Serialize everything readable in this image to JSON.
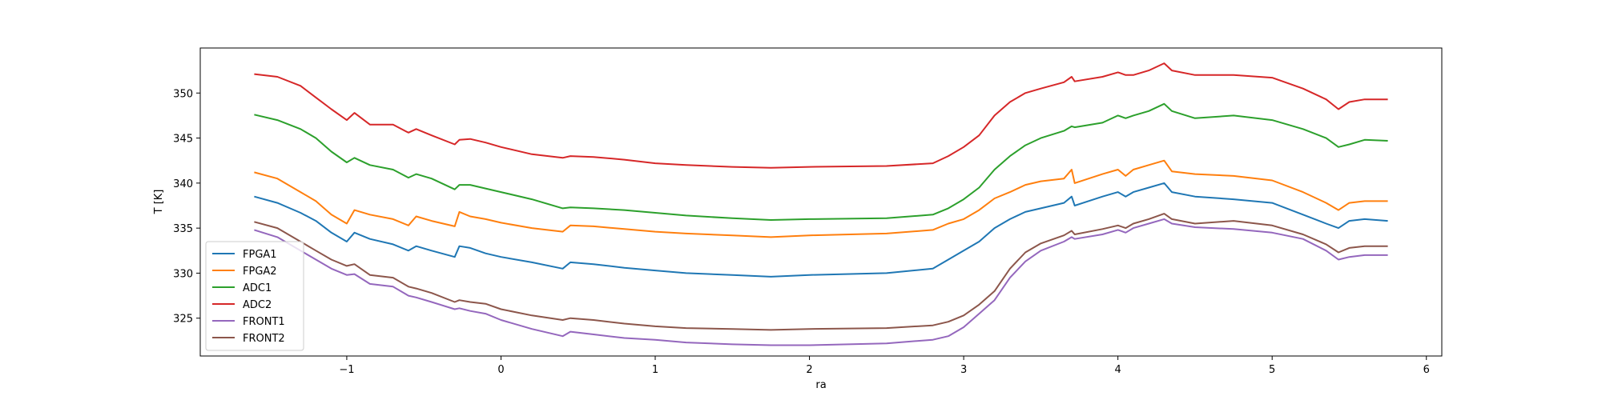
{
  "chart_data": {
    "type": "line",
    "title": "",
    "xlabel": "ra",
    "ylabel": "T [K]",
    "xlim": [
      -1.95,
      6.1
    ],
    "ylim": [
      320.8,
      355.0
    ],
    "xticks": [
      -1,
      0,
      1,
      2,
      3,
      4,
      5,
      6
    ],
    "xtick_labels": [
      "−1",
      "0",
      "1",
      "2",
      "3",
      "4",
      "5",
      "6"
    ],
    "yticks": [
      325,
      330,
      335,
      340,
      345,
      350
    ],
    "ytick_labels": [
      "325",
      "330",
      "335",
      "340",
      "345",
      "350"
    ],
    "grid": false,
    "legend_position": "lower-left",
    "series": [
      {
        "name": "FPGA1",
        "color": "#1f77b4",
        "x": [
          -1.6,
          -1.45,
          -1.3,
          -1.2,
          -1.1,
          -1.0,
          -0.95,
          -0.85,
          -0.7,
          -0.6,
          -0.55,
          -0.45,
          -0.3,
          -0.27,
          -0.2,
          -0.1,
          0.0,
          0.2,
          0.4,
          0.45,
          0.6,
          0.8,
          1.0,
          1.2,
          1.5,
          1.75,
          2.0,
          2.5,
          2.8,
          2.9,
          3.0,
          3.1,
          3.2,
          3.3,
          3.4,
          3.5,
          3.65,
          3.7,
          3.72,
          3.9,
          4.0,
          4.05,
          4.1,
          4.2,
          4.3,
          4.35,
          4.5,
          4.75,
          5.0,
          5.2,
          5.35,
          5.43,
          5.5,
          5.6,
          5.75
        ],
        "y": [
          338.5,
          337.8,
          336.7,
          335.8,
          334.5,
          333.5,
          334.5,
          333.8,
          333.2,
          332.5,
          333.0,
          332.5,
          331.8,
          333.0,
          332.8,
          332.2,
          331.8,
          331.2,
          330.5,
          331.2,
          331.0,
          330.6,
          330.3,
          330.0,
          329.8,
          329.6,
          329.8,
          330.0,
          330.5,
          331.5,
          332.5,
          333.5,
          335.0,
          336.0,
          336.8,
          337.2,
          337.8,
          338.5,
          337.5,
          338.5,
          339.0,
          338.5,
          339.0,
          339.5,
          340.0,
          339.0,
          338.5,
          338.2,
          337.8,
          336.5,
          335.5,
          335.0,
          335.8,
          336.0,
          335.8
        ]
      },
      {
        "name": "FPGA2",
        "color": "#ff7f0e",
        "x": [
          -1.6,
          -1.45,
          -1.3,
          -1.2,
          -1.1,
          -1.0,
          -0.95,
          -0.85,
          -0.7,
          -0.6,
          -0.55,
          -0.45,
          -0.3,
          -0.27,
          -0.2,
          -0.1,
          0.0,
          0.2,
          0.4,
          0.45,
          0.6,
          0.8,
          1.0,
          1.2,
          1.5,
          1.75,
          2.0,
          2.5,
          2.8,
          2.9,
          3.0,
          3.1,
          3.2,
          3.3,
          3.4,
          3.5,
          3.65,
          3.7,
          3.72,
          3.9,
          4.0,
          4.05,
          4.1,
          4.2,
          4.3,
          4.35,
          4.5,
          4.75,
          5.0,
          5.2,
          5.35,
          5.43,
          5.5,
          5.6,
          5.75
        ],
        "y": [
          341.2,
          340.5,
          339.0,
          338.0,
          336.5,
          335.5,
          337.0,
          336.5,
          336.0,
          335.3,
          336.3,
          335.8,
          335.2,
          336.8,
          336.3,
          336.0,
          335.6,
          335.0,
          334.6,
          335.3,
          335.2,
          334.9,
          334.6,
          334.4,
          334.2,
          334.0,
          334.2,
          334.4,
          334.8,
          335.5,
          336.0,
          337.0,
          338.3,
          339.0,
          339.8,
          340.2,
          340.5,
          341.5,
          340.0,
          341.0,
          341.5,
          340.8,
          341.5,
          342.0,
          342.5,
          341.3,
          341.0,
          340.8,
          340.3,
          339.0,
          337.8,
          337.0,
          337.8,
          338.0,
          338.0
        ]
      },
      {
        "name": "ADC1",
        "color": "#2ca02c",
        "x": [
          -1.6,
          -1.45,
          -1.3,
          -1.2,
          -1.1,
          -1.0,
          -0.95,
          -0.85,
          -0.7,
          -0.6,
          -0.55,
          -0.45,
          -0.3,
          -0.27,
          -0.2,
          -0.1,
          0.0,
          0.2,
          0.4,
          0.45,
          0.6,
          0.8,
          1.0,
          1.2,
          1.5,
          1.75,
          2.0,
          2.5,
          2.8,
          2.9,
          3.0,
          3.1,
          3.2,
          3.3,
          3.4,
          3.5,
          3.65,
          3.7,
          3.72,
          3.9,
          4.0,
          4.05,
          4.1,
          4.2,
          4.3,
          4.35,
          4.5,
          4.75,
          5.0,
          5.2,
          5.35,
          5.43,
          5.5,
          5.6,
          5.75
        ],
        "y": [
          347.6,
          347.0,
          346.0,
          345.0,
          343.5,
          342.3,
          342.8,
          342.0,
          341.5,
          340.6,
          341.0,
          340.5,
          339.3,
          339.8,
          339.8,
          339.4,
          339.0,
          338.2,
          337.2,
          337.3,
          337.2,
          337.0,
          336.7,
          336.4,
          336.1,
          335.9,
          336.0,
          336.1,
          336.5,
          337.2,
          338.2,
          339.5,
          341.5,
          343.0,
          344.2,
          345.0,
          345.8,
          346.3,
          346.2,
          346.7,
          347.5,
          347.2,
          347.5,
          348.0,
          348.8,
          348.0,
          347.2,
          347.5,
          347.0,
          346.0,
          345.0,
          344.0,
          344.3,
          344.8,
          344.7
        ]
      },
      {
        "name": "ADC2",
        "color": "#d62728",
        "x": [
          -1.6,
          -1.45,
          -1.3,
          -1.2,
          -1.1,
          -1.0,
          -0.95,
          -0.85,
          -0.7,
          -0.6,
          -0.55,
          -0.45,
          -0.3,
          -0.27,
          -0.2,
          -0.1,
          0.0,
          0.2,
          0.4,
          0.45,
          0.6,
          0.8,
          1.0,
          1.2,
          1.5,
          1.75,
          2.0,
          2.5,
          2.8,
          2.9,
          3.0,
          3.1,
          3.2,
          3.3,
          3.4,
          3.5,
          3.65,
          3.7,
          3.72,
          3.9,
          4.0,
          4.05,
          4.1,
          4.2,
          4.3,
          4.35,
          4.5,
          4.75,
          5.0,
          5.2,
          5.35,
          5.43,
          5.5,
          5.6,
          5.75
        ],
        "y": [
          352.1,
          351.8,
          350.8,
          349.5,
          348.2,
          347.0,
          347.8,
          346.5,
          346.5,
          345.6,
          346.0,
          345.3,
          344.3,
          344.8,
          344.9,
          344.5,
          344.0,
          343.2,
          342.8,
          343.0,
          342.9,
          342.6,
          342.2,
          342.0,
          341.8,
          341.7,
          341.8,
          341.9,
          342.2,
          343.0,
          344.0,
          345.3,
          347.5,
          349.0,
          350.0,
          350.5,
          351.2,
          351.8,
          351.3,
          351.8,
          352.3,
          352.0,
          352.0,
          352.5,
          353.3,
          352.5,
          352.0,
          352.0,
          351.7,
          350.5,
          349.3,
          348.2,
          349.0,
          349.3,
          349.3
        ]
      },
      {
        "name": "FRONT1",
        "color": "#9467bd",
        "x": [
          -1.6,
          -1.45,
          -1.3,
          -1.2,
          -1.1,
          -1.0,
          -0.95,
          -0.85,
          -0.7,
          -0.6,
          -0.55,
          -0.45,
          -0.3,
          -0.27,
          -0.2,
          -0.1,
          0.0,
          0.2,
          0.4,
          0.45,
          0.6,
          0.8,
          1.0,
          1.2,
          1.5,
          1.75,
          2.0,
          2.5,
          2.8,
          2.9,
          3.0,
          3.1,
          3.2,
          3.3,
          3.4,
          3.5,
          3.65,
          3.7,
          3.72,
          3.9,
          4.0,
          4.05,
          4.1,
          4.2,
          4.3,
          4.35,
          4.5,
          4.75,
          5.0,
          5.2,
          5.35,
          5.43,
          5.5,
          5.6,
          5.75
        ],
        "y": [
          334.8,
          334.0,
          332.5,
          331.5,
          330.5,
          329.8,
          329.9,
          328.8,
          328.5,
          327.5,
          327.3,
          326.8,
          326.0,
          326.1,
          325.8,
          325.5,
          324.8,
          323.8,
          323.0,
          323.5,
          323.2,
          322.8,
          322.6,
          322.3,
          322.1,
          322.0,
          322.0,
          322.2,
          322.6,
          323.0,
          324.0,
          325.5,
          327.0,
          329.5,
          331.3,
          332.5,
          333.5,
          334.0,
          333.8,
          334.3,
          334.8,
          334.5,
          335.0,
          335.5,
          336.0,
          335.5,
          335.1,
          334.9,
          334.5,
          333.8,
          332.5,
          331.5,
          331.8,
          332.0,
          332.0
        ]
      },
      {
        "name": "FRONT2",
        "color": "#8c564b",
        "x": [
          -1.6,
          -1.45,
          -1.3,
          -1.2,
          -1.1,
          -1.0,
          -0.95,
          -0.85,
          -0.7,
          -0.6,
          -0.55,
          -0.45,
          -0.3,
          -0.27,
          -0.2,
          -0.1,
          0.0,
          0.2,
          0.4,
          0.45,
          0.6,
          0.8,
          1.0,
          1.2,
          1.5,
          1.75,
          2.0,
          2.5,
          2.8,
          2.9,
          3.0,
          3.1,
          3.2,
          3.3,
          3.4,
          3.5,
          3.65,
          3.7,
          3.72,
          3.9,
          4.0,
          4.05,
          4.1,
          4.2,
          4.3,
          4.35,
          4.5,
          4.75,
          5.0,
          5.2,
          5.35,
          5.43,
          5.5,
          5.6,
          5.75
        ],
        "y": [
          335.7,
          335.0,
          333.5,
          332.5,
          331.5,
          330.8,
          331.0,
          329.8,
          329.5,
          328.5,
          328.3,
          327.8,
          326.8,
          327.0,
          326.8,
          326.6,
          326.0,
          325.3,
          324.8,
          325.0,
          324.8,
          324.4,
          324.1,
          323.9,
          323.8,
          323.7,
          323.8,
          323.9,
          324.2,
          324.6,
          325.3,
          326.5,
          328.0,
          330.5,
          332.3,
          333.3,
          334.2,
          334.7,
          334.3,
          334.9,
          335.3,
          335.0,
          335.5,
          336.0,
          336.6,
          336.0,
          335.5,
          335.8,
          335.3,
          334.3,
          333.2,
          332.3,
          332.8,
          333.0,
          333.0
        ]
      }
    ]
  }
}
